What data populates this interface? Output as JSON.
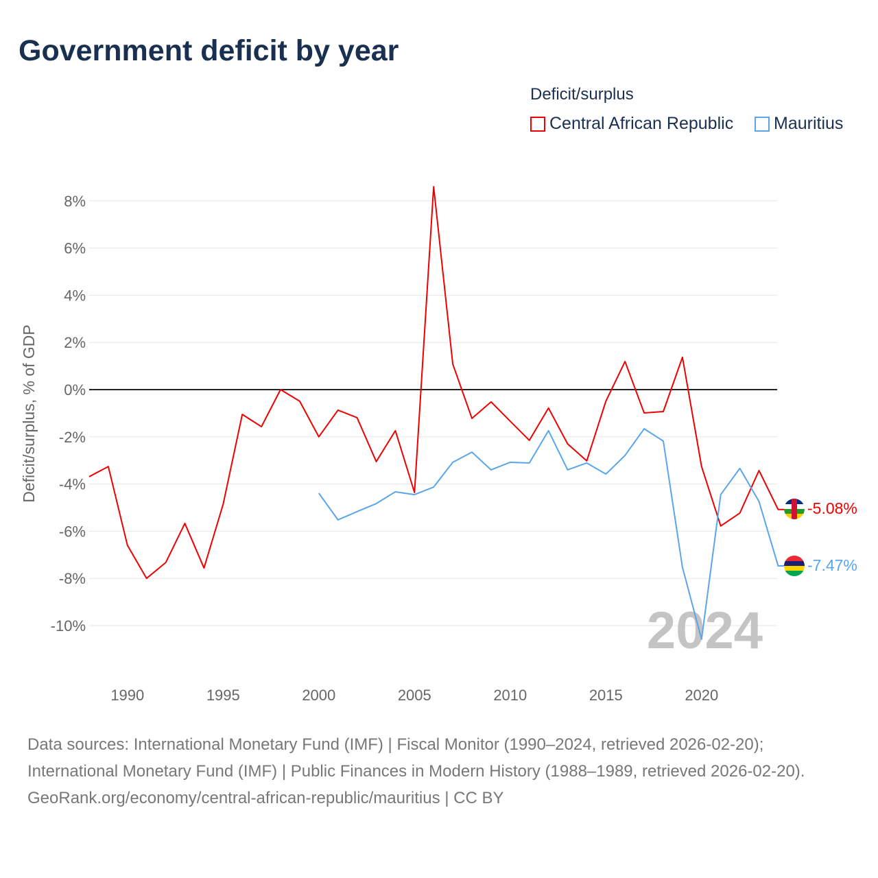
{
  "title": "Government deficit by year",
  "legend": {
    "title": "Deficit/surplus"
  },
  "footer": {
    "sources": "Data sources: International Monetary Fund (IMF) | Fiscal Monitor (1990–2024, retrieved 2026-02-20); International Monetary Fund (IMF) | Public Finances in Modern History (1988–1989, retrieved 2026-02-20).",
    "credit": "GeoRank.org/economy/central-african-republic/mauritius | CC BY"
  },
  "chart_data": {
    "type": "line",
    "title": "Government deficit by year",
    "xlabel": "",
    "ylabel": "Deficit/surplus, % of GDP",
    "xlim": [
      1988,
      2024
    ],
    "ylim": [
      -11.5,
      8.6
    ],
    "yticks": [
      8,
      6,
      4,
      2,
      0,
      -2,
      -4,
      -6,
      -8,
      -10
    ],
    "ytick_labels": [
      "8%",
      "6%",
      "4%",
      "2%",
      "0%",
      "-2%",
      "-4%",
      "-6%",
      "-8%",
      "-10%"
    ],
    "xticks": [
      1990,
      1995,
      2000,
      2005,
      2010,
      2015,
      2020
    ],
    "xtick_labels": [
      "1990",
      "1995",
      "2000",
      "2005",
      "2010",
      "2015",
      "2020"
    ],
    "grid": true,
    "legend_position": "top-right",
    "year_label": "2024",
    "series": [
      {
        "name": "Central African Republic",
        "color": "#ee0000",
        "end_label": "-5.08%",
        "x": [
          1988,
          1989,
          1990,
          1991,
          1992,
          1993,
          1994,
          1995,
          1996,
          1997,
          1998,
          1999,
          2000,
          2001,
          2002,
          2003,
          2004,
          2005,
          2006,
          2007,
          2008,
          2009,
          2010,
          2011,
          2012,
          2013,
          2014,
          2015,
          2016,
          2017,
          2018,
          2019,
          2020,
          2021,
          2022,
          2023,
          2024
        ],
        "values": [
          -3.69,
          -3.26,
          -6.6,
          -8.0,
          -7.33,
          -5.67,
          -7.56,
          -4.86,
          -1.05,
          -1.57,
          0.0,
          -0.49,
          -2.0,
          -0.87,
          -1.19,
          -3.05,
          -1.74,
          -4.36,
          8.6,
          1.08,
          -1.22,
          -0.52,
          -1.34,
          -2.15,
          -0.78,
          -2.3,
          -3.02,
          -0.49,
          1.19,
          -0.99,
          -0.93,
          1.37,
          -3.26,
          -5.78,
          -5.23,
          -3.43,
          -5.08
        ]
      },
      {
        "name": "Mauritius",
        "color": "#5aa5ea",
        "end_label": "-7.47%",
        "x": [
          2000,
          2001,
          2002,
          2003,
          2004,
          2005,
          2006,
          2007,
          2008,
          2009,
          2010,
          2011,
          2012,
          2013,
          2014,
          2015,
          2016,
          2017,
          2018,
          2019,
          2020,
          2021,
          2022,
          2023,
          2024
        ],
        "values": [
          -4.39,
          -5.52,
          -5.17,
          -4.83,
          -4.33,
          -4.45,
          -4.13,
          -3.08,
          -2.65,
          -3.4,
          -3.08,
          -3.11,
          -1.74,
          -3.4,
          -3.11,
          -3.58,
          -2.79,
          -1.66,
          -2.18,
          -7.53,
          -10.58,
          -4.45,
          -3.34,
          -4.74,
          -7.47
        ]
      }
    ]
  }
}
